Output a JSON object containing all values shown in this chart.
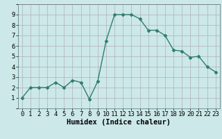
{
  "x": [
    0,
    1,
    2,
    3,
    4,
    5,
    6,
    7,
    8,
    9,
    10,
    11,
    12,
    13,
    14,
    15,
    16,
    17,
    18,
    19,
    20,
    21,
    22,
    23
  ],
  "y": [
    1,
    2,
    2,
    2,
    2.5,
    2,
    2.7,
    2.5,
    0.9,
    2.6,
    6.5,
    9,
    9,
    9,
    8.6,
    7.5,
    7.5,
    7,
    5.6,
    5.5,
    4.9,
    5,
    4,
    3.5
  ],
  "line_color": "#2e7d6e",
  "marker": "D",
  "marker_size": 2.5,
  "bg_color": "#cce8e8",
  "grid_major_color": "#b0b0b0",
  "grid_minor_color": "#d8c8c8",
  "xlabel": "Humidex (Indice chaleur)",
  "xlabel_fontsize": 7.5,
  "xlim": [
    -0.5,
    23.5
  ],
  "ylim": [
    0,
    10
  ],
  "yticks": [
    1,
    2,
    3,
    4,
    5,
    6,
    7,
    8,
    9
  ],
  "xticks": [
    0,
    1,
    2,
    3,
    4,
    5,
    6,
    7,
    8,
    9,
    10,
    11,
    12,
    13,
    14,
    15,
    16,
    17,
    18,
    19,
    20,
    21,
    22,
    23
  ],
  "tick_fontsize": 6.5,
  "line_width": 1.0
}
